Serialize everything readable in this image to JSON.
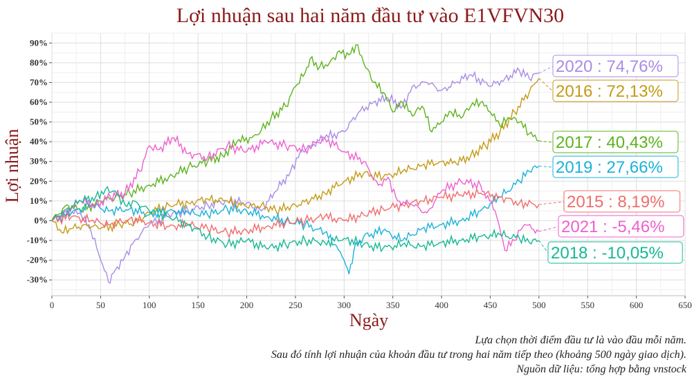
{
  "chart_data": {
    "type": "line",
    "title": "Lợi nhuận sau hai năm đầu tư vào E1VFVN30",
    "xlabel": "Ngày",
    "ylabel": "Lợi nhuận",
    "xlim": [
      0,
      650
    ],
    "ylim": [
      -38,
      95
    ],
    "xticks": [
      0,
      50,
      100,
      150,
      200,
      250,
      300,
      350,
      400,
      450,
      500,
      550,
      600,
      650
    ],
    "yticks": [
      -30,
      -20,
      -10,
      0,
      10,
      20,
      30,
      40,
      50,
      60,
      70,
      80,
      90
    ],
    "ytick_labels": [
      "-30%",
      "-20%",
      "-10%",
      "0%",
      "10%",
      "20%",
      "30%",
      "40%",
      "50%",
      "60%",
      "70%",
      "80%",
      "90%"
    ],
    "grid": true,
    "series": [
      {
        "name": "2020",
        "label": "2020 : 74,76%",
        "color": "#a88ce6",
        "x": [
          0,
          15,
          30,
          40,
          50,
          58,
          65,
          75,
          85,
          100,
          120,
          140,
          160,
          180,
          200,
          215,
          230,
          245,
          255,
          265,
          280,
          300,
          315,
          330,
          345,
          360,
          370,
          385,
          400,
          415,
          430,
          450,
          465,
          480,
          490,
          500
        ],
        "y": [
          0,
          5,
          3,
          -5,
          -20,
          -31,
          -25,
          -18,
          -10,
          -2,
          3,
          5,
          8,
          10,
          9,
          5,
          15,
          25,
          35,
          38,
          42,
          45,
          55,
          60,
          62,
          58,
          68,
          70,
          66,
          70,
          74,
          68,
          72,
          76,
          72,
          74.76
        ]
      },
      {
        "name": "2016",
        "label": "2016 : 72,13%",
        "color": "#c49a14",
        "x": [
          0,
          10,
          20,
          35,
          50,
          70,
          85,
          100,
          120,
          140,
          160,
          180,
          200,
          215,
          230,
          250,
          265,
          280,
          300,
          320,
          340,
          360,
          380,
          400,
          415,
          430,
          445,
          460,
          475,
          490,
          500
        ],
        "y": [
          0,
          -6,
          -4,
          -2,
          -4,
          -2,
          -1,
          4,
          8,
          9,
          11,
          10,
          7,
          8,
          5,
          8,
          10,
          14,
          20,
          24,
          22,
          25,
          28,
          30,
          29,
          33,
          38,
          45,
          55,
          65,
          72.13
        ]
      },
      {
        "name": "2017",
        "label": "2017 : 40,43%",
        "color": "#5cb31c",
        "x": [
          0,
          15,
          30,
          50,
          65,
          80,
          100,
          120,
          140,
          160,
          175,
          190,
          205,
          215,
          225,
          240,
          250,
          260,
          265,
          275,
          285,
          295,
          305,
          312,
          320,
          330,
          340,
          350,
          360,
          370,
          380,
          390,
          400,
          410,
          420,
          430,
          440,
          450,
          460,
          470,
          480,
          490,
          500
        ],
        "y": [
          0,
          8,
          5,
          10,
          12,
          14,
          18,
          22,
          27,
          30,
          33,
          40,
          42,
          46,
          52,
          58,
          68,
          75,
          82,
          78,
          80,
          86,
          84,
          89,
          80,
          70,
          65,
          55,
          60,
          53,
          58,
          45,
          50,
          55,
          52,
          58,
          60,
          55,
          48,
          52,
          50,
          44,
          40.43
        ]
      },
      {
        "name": "2019",
        "label": "2019 : 27,66%",
        "color": "#1ab2d9",
        "x": [
          0,
          20,
          40,
          60,
          80,
          100,
          120,
          140,
          160,
          180,
          200,
          220,
          240,
          260,
          280,
          290,
          300,
          305,
          310,
          320,
          340,
          360,
          380,
          400,
          420,
          440,
          460,
          480,
          490,
          500
        ],
        "y": [
          0,
          4,
          8,
          5,
          6,
          3,
          5,
          4,
          3,
          6,
          5,
          2,
          0,
          -2,
          -6,
          -12,
          -20,
          -27,
          -15,
          -8,
          -5,
          -10,
          -4,
          -2,
          0,
          5,
          12,
          20,
          25,
          27.66
        ]
      },
      {
        "name": "2015",
        "label": "2015 : 8,19%",
        "color": "#f06c6c",
        "x": [
          0,
          20,
          40,
          60,
          80,
          100,
          120,
          140,
          160,
          180,
          200,
          220,
          240,
          260,
          280,
          300,
          320,
          340,
          360,
          380,
          400,
          420,
          440,
          460,
          480,
          500
        ],
        "y": [
          0,
          2,
          0,
          -2,
          1,
          -1,
          -3,
          -2,
          -4,
          -6,
          -5,
          -3,
          -1,
          0,
          2,
          0,
          3,
          6,
          8,
          10,
          12,
          13,
          14,
          12,
          9,
          8.19
        ]
      },
      {
        "name": "2021",
        "label": "2021 : -5,46%",
        "color": "#ee5fcf",
        "x": [
          0,
          15,
          30,
          45,
          60,
          75,
          90,
          100,
          110,
          125,
          140,
          160,
          180,
          200,
          220,
          240,
          260,
          280,
          300,
          320,
          335,
          345,
          355,
          370,
          385,
          400,
          420,
          440,
          455,
          465,
          475,
          485,
          500
        ],
        "y": [
          0,
          5,
          10,
          8,
          12,
          14,
          25,
          38,
          36,
          42,
          34,
          32,
          38,
          35,
          40,
          38,
          36,
          42,
          35,
          30,
          18,
          22,
          10,
          8,
          4,
          15,
          20,
          18,
          5,
          -15,
          -10,
          -2,
          -5.46
        ]
      },
      {
        "name": "2018",
        "label": "2018 : -10,05%",
        "color": "#15b894",
        "x": [
          0,
          15,
          30,
          45,
          55,
          65,
          75,
          85,
          100,
          120,
          140,
          160,
          180,
          200,
          220,
          240,
          260,
          280,
          300,
          320,
          340,
          360,
          380,
          400,
          420,
          440,
          460,
          480,
          490,
          500
        ],
        "y": [
          0,
          6,
          10,
          12,
          16,
          15,
          8,
          10,
          5,
          2,
          -2,
          -8,
          -12,
          -10,
          -14,
          -12,
          -10,
          -11,
          -9,
          -12,
          -14,
          -12,
          -13,
          -11,
          -10,
          -8,
          -7,
          -9,
          -11,
          -10.05
        ]
      }
    ]
  },
  "captions": [
    "Lựa chọn thời điểm đầu tư là vào đầu mỗi năm.",
    "Sau đó tính lợi nhuận của khoản đầu tư trong hai năm tiếp theo (khoảng 500 ngày giao dịch).",
    "Nguồn dữ liệu: tổng hợp bằng vnstock"
  ]
}
